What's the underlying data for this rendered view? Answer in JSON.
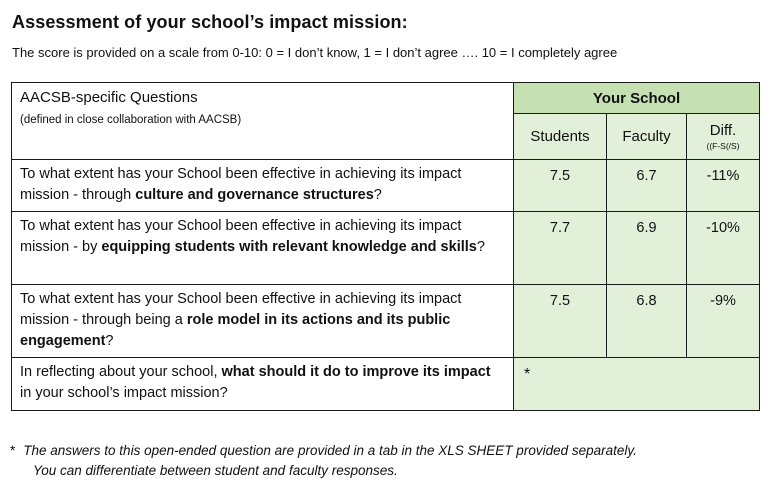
{
  "title": "Assessment of your school’s impact mission:",
  "subtitle": "The score is provided on a scale from 0-10:  0 = I don’t know, 1 = I don’t agree …. 10 = I completely agree",
  "table": {
    "header": {
      "questions_label": "AACSB-specific Questions",
      "questions_sublabel": "(defined in close collaboration with AACSB)",
      "group_label": "Your School",
      "students": "Students",
      "faculty": "Faculty",
      "diff": "Diff.",
      "diff_formula": "((F-S(/S)"
    },
    "rows": [
      {
        "q_pre": "To what extent has your School been effective in achieving its impact mission - through ",
        "q_bold": "culture and governance structures",
        "q_post": "?",
        "students": "7.5",
        "faculty": "6.7",
        "diff": "-11%"
      },
      {
        "q_pre": "To what extent has your School been effective in achieving its impact mission - by ",
        "q_bold": "equipping students with relevant knowledge and skills",
        "q_post": "?",
        "students": "7.7",
        "faculty": "6.9",
        "diff": "-10%"
      },
      {
        "q_pre": "To what extent has your School been effective in achieving its impact mission - through being a ",
        "q_bold": "role model in its actions and its public engagement",
        "q_post": "?",
        "students": "7.5",
        "faculty": "6.8",
        "diff": "-9%"
      }
    ],
    "open_question": {
      "pre": "In reflecting about your school, ",
      "bold": "what should it do to improve its impact",
      "post": " in your school’s impact mission?",
      "answer": "*"
    }
  },
  "footnote": {
    "marker": "*",
    "line1": "The answers to this open-ended question are provided in a tab in the XLS SHEET provided separately.",
    "line2": "You can differentiate between student and faculty responses."
  }
}
